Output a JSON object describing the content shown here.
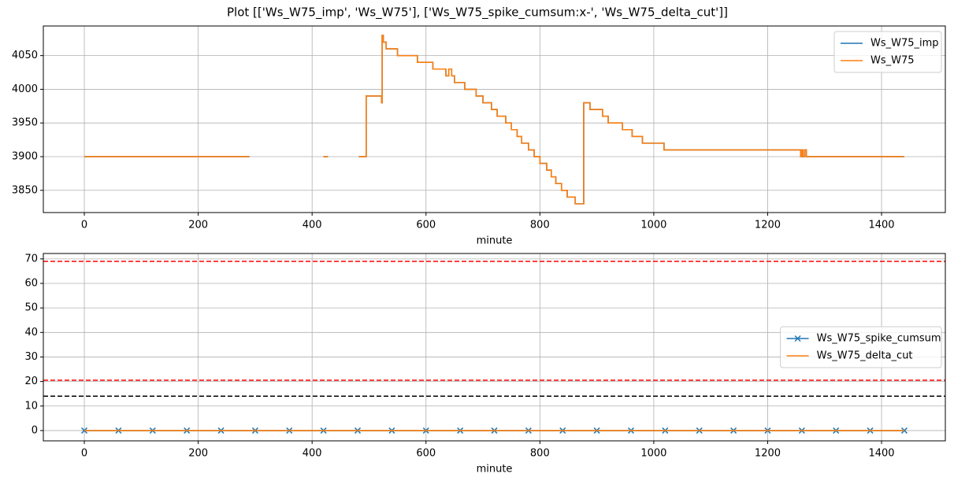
{
  "title": "Plot [['Ws_W75_imp', 'Ws_W75'], ['Ws_W75_spike_cumsum:x-', 'Ws_W75_delta_cut']]",
  "chart_data": [
    {
      "type": "line",
      "drawstyle": "steps-post",
      "x_label": "minute",
      "grid": true,
      "legend": "upper right",
      "xlim": [
        -72,
        1512
      ],
      "xticks": [
        0,
        200,
        400,
        600,
        800,
        1000,
        1200,
        1400
      ],
      "ylim": [
        3817,
        4094
      ],
      "yticks": [
        3850,
        3900,
        3950,
        4000,
        4050
      ],
      "x": [
        0,
        290,
        null,
        420,
        428,
        null,
        482,
        495,
        522,
        523,
        525,
        530,
        550,
        585,
        612,
        635,
        640,
        645,
        650,
        668,
        688,
        700,
        715,
        725,
        740,
        750,
        760,
        768,
        780,
        790,
        800,
        812,
        820,
        828,
        838,
        848,
        862,
        877,
        888,
        910,
        920,
        945,
        962,
        980,
        1018,
        1258,
        1260,
        1262,
        1265,
        1268,
        1440
      ],
      "series": [
        {
          "name": "Ws_W75_imp",
          "color": "#1f77b4",
          "values": [
            3900,
            3900,
            null,
            3900,
            3900,
            null,
            3900,
            3990,
            3980,
            4080,
            4070,
            4060,
            4050,
            4040,
            4030,
            4020,
            4030,
            4020,
            4010,
            4000,
            3990,
            3980,
            3970,
            3960,
            3950,
            3940,
            3930,
            3920,
            3910,
            3900,
            3890,
            3880,
            3870,
            3860,
            3850,
            3840,
            3830,
            3980,
            3970,
            3960,
            3950,
            3940,
            3930,
            3920,
            3910,
            3900,
            3910,
            3900,
            3910,
            3900,
            3900
          ]
        },
        {
          "name": "Ws_W75",
          "color": "#ff7f0e",
          "values": [
            3900,
            3900,
            null,
            3900,
            3900,
            null,
            3900,
            3990,
            3980,
            4080,
            4070,
            4060,
            4050,
            4040,
            4030,
            4020,
            4030,
            4020,
            4010,
            4000,
            3990,
            3980,
            3970,
            3960,
            3950,
            3940,
            3930,
            3920,
            3910,
            3900,
            3890,
            3880,
            3870,
            3860,
            3850,
            3840,
            3830,
            3980,
            3970,
            3960,
            3950,
            3940,
            3930,
            3920,
            3910,
            3900,
            3910,
            3900,
            3910,
            3900,
            3900
          ]
        }
      ]
    },
    {
      "type": "line",
      "x_label": "minute",
      "grid": true,
      "legend": "center right",
      "xlim": [
        -72,
        1512
      ],
      "xticks": [
        0,
        200,
        400,
        600,
        800,
        1000,
        1200,
        1400
      ],
      "ylim": [
        -4.2,
        72.2
      ],
      "yticks": [
        0,
        10,
        20,
        30,
        40,
        50,
        60,
        70
      ],
      "x": [
        0,
        60,
        120,
        180,
        240,
        300,
        360,
        420,
        480,
        540,
        600,
        660,
        720,
        780,
        840,
        900,
        960,
        1020,
        1080,
        1140,
        1200,
        1260,
        1320,
        1380,
        1440
      ],
      "series": [
        {
          "name": "Ws_W75_spike_cumsum",
          "color": "#1f77b4",
          "marker": "x",
          "values": [
            0,
            0,
            0,
            0,
            0,
            0,
            0,
            0,
            0,
            0,
            0,
            0,
            0,
            0,
            0,
            0,
            0,
            0,
            0,
            0,
            0,
            0,
            0,
            0,
            0
          ]
        },
        {
          "name": "Ws_W75_delta_cut",
          "color": "#ff7f0e",
          "values": [
            0,
            0,
            0,
            0,
            0,
            0,
            0,
            0,
            0,
            0,
            0,
            0,
            0,
            0,
            0,
            0,
            0,
            0,
            0,
            0,
            0,
            0,
            0,
            0,
            0
          ]
        }
      ],
      "hlines": [
        {
          "value": 69,
          "color": "#ff0000"
        },
        {
          "value": 20.5,
          "color": "#ff0000"
        },
        {
          "value": 14,
          "color": "#000000"
        }
      ]
    }
  ]
}
